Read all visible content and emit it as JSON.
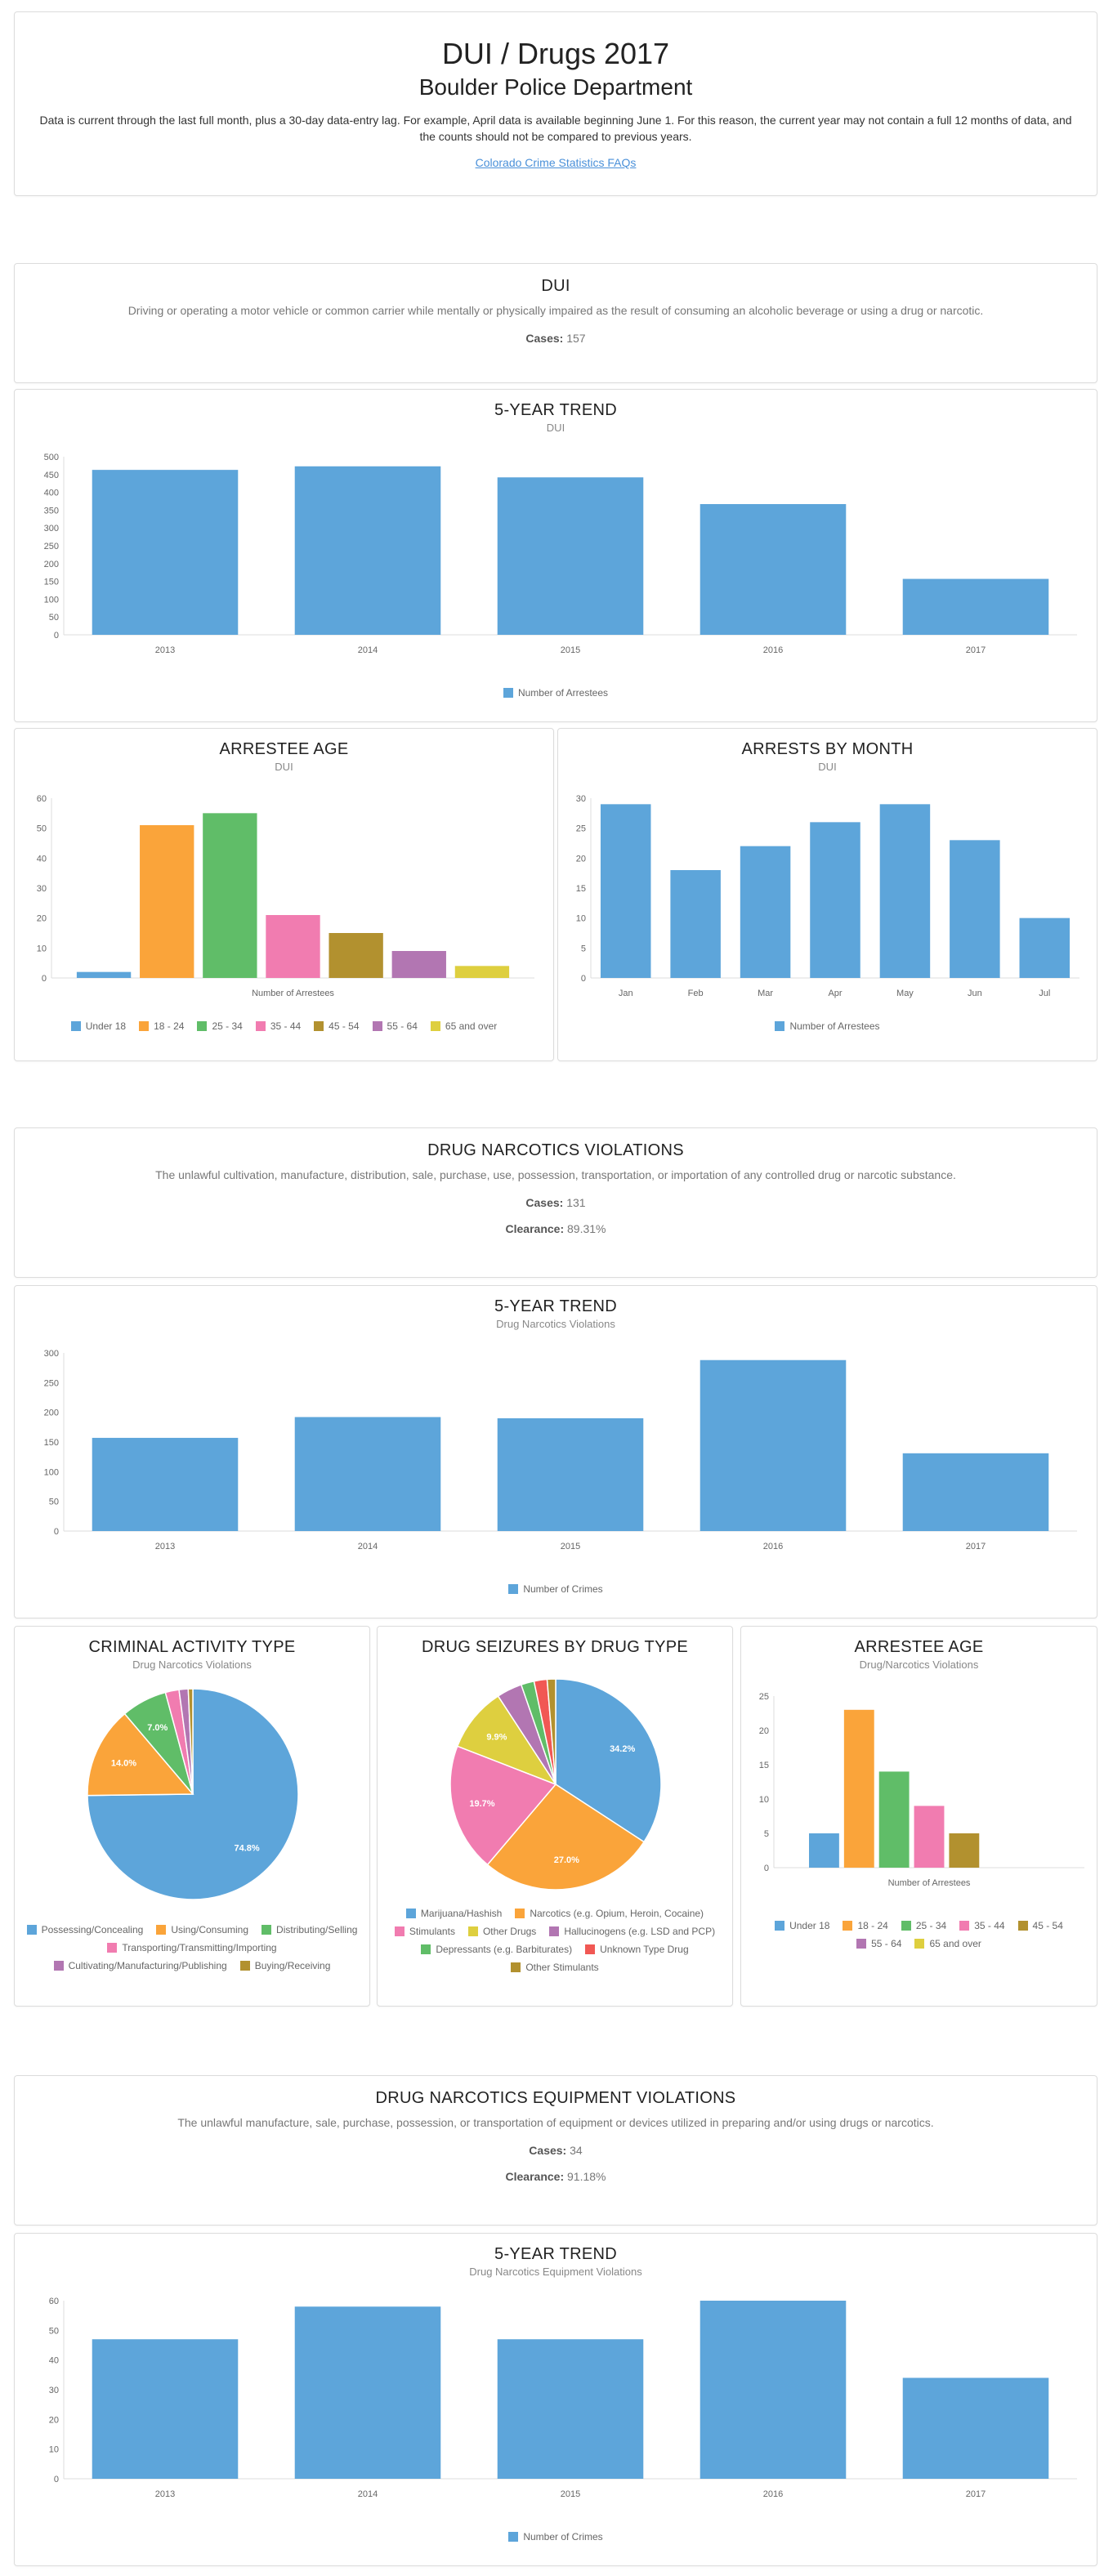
{
  "header": {
    "title": "DUI / Drugs 2017",
    "subtitle": "Boulder Police Department",
    "note": "Data is current through the last full month, plus a 30-day data-entry lag. For example, April data is available beginning June 1. For this reason, the current year may not contain a full 12 months of data, and the counts should not be compared to previous years.",
    "link_text": "Colorado Crime Statistics FAQs"
  },
  "sections": {
    "dui": {
      "title": "DUI",
      "description": "Driving or operating a motor vehicle or common carrier while mentally or physically impaired as the result of consuming an alcoholic beverage or using a drug or narcotic.",
      "cases_label": "Cases:",
      "cases_value": "157"
    },
    "drug": {
      "title": "DRUG NARCOTICS VIOLATIONS",
      "description": "The unlawful cultivation, manufacture, distribution, sale, purchase, use, possession, transportation, or importation of any controlled drug or narcotic substance.",
      "cases_label": "Cases:",
      "cases_value": "131",
      "clearance_label": "Clearance:",
      "clearance_value": "89.31%"
    },
    "equip": {
      "title": "DRUG NARCOTICS EQUIPMENT VIOLATIONS",
      "description": "The unlawful manufacture, sale, purchase, possession, or transportation of equipment or devices utilized in preparing and/or using drugs or narcotics.",
      "cases_label": "Cases:",
      "cases_value": "34",
      "clearance_label": "Clearance:",
      "clearance_value": "91.18%"
    }
  },
  "colors": {
    "blue": "#5da5da",
    "orange": "#faa43a",
    "green": "#60bd68",
    "pink": "#f17cb0",
    "brown": "#b2912f",
    "purple": "#b276b2",
    "yellow": "#decf3f",
    "red": "#f15854",
    "grey": "#dcdcdc",
    "axis_text": "#666666",
    "link": "#4a90d9"
  },
  "chart_data": [
    {
      "id": "dui_trend",
      "type": "bar",
      "title": "5-YEAR TREND",
      "subtitle": "DUI",
      "categories": [
        "2013",
        "2014",
        "2015",
        "2016",
        "2017"
      ],
      "series": [
        {
          "name": "Number of Arrestees",
          "values": [
            463,
            473,
            442,
            367,
            157
          ]
        }
      ],
      "ylim": [
        0,
        500
      ],
      "yticks": [
        "0",
        "50",
        "100",
        "150",
        "200",
        "250",
        "300",
        "350",
        "400",
        "450",
        "500"
      ],
      "xlabel": "",
      "ylabel": "",
      "legend": "bottom"
    },
    {
      "id": "dui_age",
      "type": "bar",
      "title": "ARRESTEE AGE",
      "subtitle": "DUI",
      "categories": [
        "Number of Arrestees"
      ],
      "series": [
        {
          "name": "Under 18",
          "values": [
            2
          ]
        },
        {
          "name": "18 - 24",
          "values": [
            51
          ]
        },
        {
          "name": "25 - 34",
          "values": [
            55
          ]
        },
        {
          "name": "35 - 44",
          "values": [
            21
          ]
        },
        {
          "name": "45 - 54",
          "values": [
            15
          ]
        },
        {
          "name": "55 - 64",
          "values": [
            9
          ]
        },
        {
          "name": "65 and over",
          "values": [
            4
          ]
        }
      ],
      "ylim": [
        0,
        60
      ],
      "yticks": [
        "0",
        "10",
        "20",
        "30",
        "40",
        "50",
        "60"
      ],
      "xlabel": "Number of Arrestees",
      "legend": "bottom"
    },
    {
      "id": "dui_month",
      "type": "bar",
      "title": "ARRESTS BY MONTH",
      "subtitle": "DUI",
      "categories": [
        "Jan",
        "Feb",
        "Mar",
        "Apr",
        "May",
        "Jun",
        "Jul"
      ],
      "series": [
        {
          "name": "Number of Arrestees",
          "values": [
            29,
            18,
            22,
            26,
            29,
            23,
            10
          ]
        }
      ],
      "ylim": [
        0,
        30
      ],
      "yticks": [
        "0",
        "5",
        "10",
        "15",
        "20",
        "25",
        "30"
      ],
      "legend": "bottom"
    },
    {
      "id": "drug_trend",
      "type": "bar",
      "title": "5-YEAR TREND",
      "subtitle": "Drug Narcotics Violations",
      "categories": [
        "2013",
        "2014",
        "2015",
        "2016",
        "2017"
      ],
      "series": [
        {
          "name": "Number of Crimes",
          "values": [
            157,
            192,
            190,
            288,
            131
          ]
        }
      ],
      "ylim": [
        0,
        300
      ],
      "yticks": [
        "0",
        "50",
        "100",
        "150",
        "200",
        "250",
        "300"
      ],
      "legend": "bottom"
    },
    {
      "id": "drug_activity",
      "type": "pie",
      "title": "CRIMINAL ACTIVITY TYPE",
      "subtitle": "Drug Narcotics Violations",
      "slices": [
        {
          "name": "Possessing/Concealing",
          "value": 74.8,
          "label": "74.8%"
        },
        {
          "name": "Using/Consuming",
          "value": 14.0,
          "label": "14.0%"
        },
        {
          "name": "Distributing/Selling",
          "value": 7.0,
          "label": "7.0%"
        },
        {
          "name": "Transporting/Transmitting/Importing",
          "value": 2.1,
          "label": ""
        },
        {
          "name": "Cultivating/Manufacturing/Publishing",
          "value": 1.4,
          "label": ""
        },
        {
          "name": "Buying/Receiving",
          "value": 0.7,
          "label": ""
        }
      ],
      "legend": "bottom"
    },
    {
      "id": "drug_seizures",
      "type": "pie",
      "title": "DRUG SEIZURES BY DRUG TYPE",
      "subtitle": "",
      "slices": [
        {
          "name": "Marijuana/Hashish",
          "value": 34.2,
          "label": "34.2%"
        },
        {
          "name": "Narcotics (e.g. Opium, Heroin, Cocaine)",
          "value": 27.0,
          "label": "27.0%"
        },
        {
          "name": "Stimulants",
          "value": 19.7,
          "label": "19.7%"
        },
        {
          "name": "Other Drugs",
          "value": 9.9,
          "label": "9.9%"
        },
        {
          "name": "Hallucinogens (e.g. LSD and PCP)",
          "value": 3.9,
          "label": ""
        },
        {
          "name": "Depressants (e.g. Barbiturates)",
          "value": 2.0,
          "label": ""
        },
        {
          "name": "Unknown Type Drug",
          "value": 2.0,
          "label": ""
        },
        {
          "name": "Other Stimulants",
          "value": 1.3,
          "label": ""
        }
      ],
      "legend": "bottom"
    },
    {
      "id": "drug_age",
      "type": "bar",
      "title": "ARRESTEE AGE",
      "subtitle": "Drug/Narcotics Violations",
      "categories": [
        "Number of Arrestees"
      ],
      "series": [
        {
          "name": "Under 18",
          "values": [
            5
          ]
        },
        {
          "name": "18 - 24",
          "values": [
            23
          ]
        },
        {
          "name": "25 - 34",
          "values": [
            14
          ]
        },
        {
          "name": "35 - 44",
          "values": [
            9
          ]
        },
        {
          "name": "45 - 54",
          "values": [
            5
          ]
        },
        {
          "name": "55 - 64",
          "values": [
            0
          ]
        },
        {
          "name": "65 and over",
          "values": [
            0
          ]
        }
      ],
      "ylim": [
        0,
        25
      ],
      "yticks": [
        "0",
        "5",
        "10",
        "15",
        "20",
        "25"
      ],
      "xlabel": "Number of Arrestees",
      "legend": "bottom"
    },
    {
      "id": "equip_trend",
      "type": "bar",
      "title": "5-YEAR TREND",
      "subtitle": "Drug Narcotics Equipment Violations",
      "categories": [
        "2013",
        "2014",
        "2015",
        "2016",
        "2017"
      ],
      "series": [
        {
          "name": "Number of Crimes",
          "values": [
            47,
            58,
            47,
            60,
            34
          ]
        }
      ],
      "ylim": [
        0,
        60
      ],
      "yticks": [
        "0",
        "10",
        "20",
        "30",
        "40",
        "50",
        "60"
      ],
      "legend": "bottom"
    }
  ]
}
